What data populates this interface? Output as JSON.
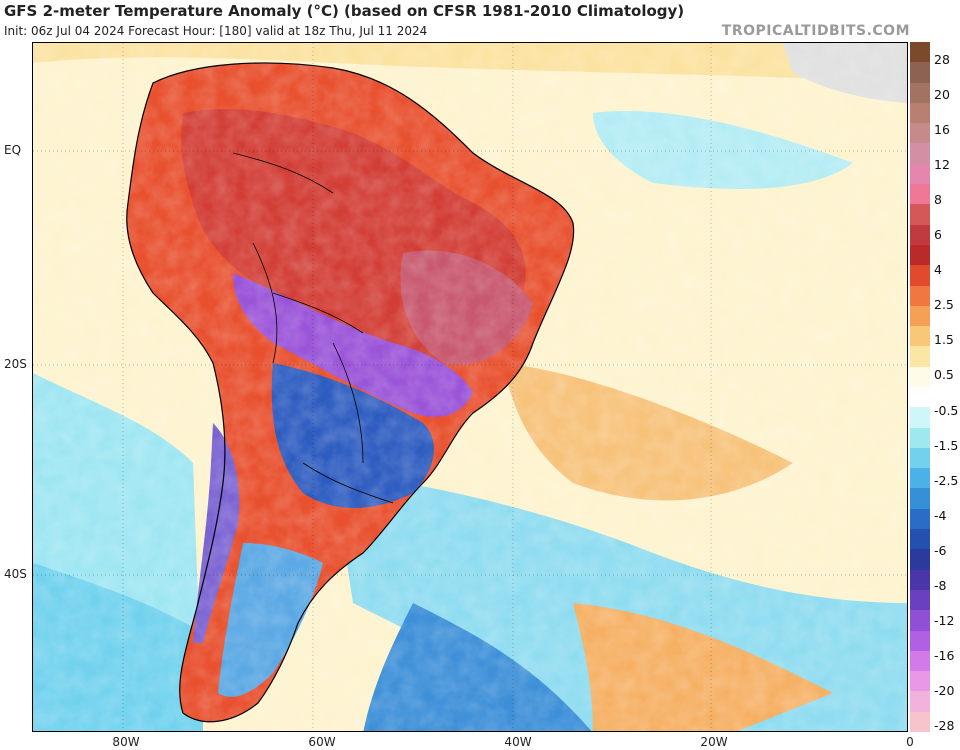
{
  "header": {
    "title": "GFS 2-meter Temperature Anomaly (°C) (based on CFSR 1981-2010 Climatology)",
    "subtitle": "Init: 06z Jul 04 2024   Forecast Hour: [180]   valid at 18z Thu, Jul 11 2024",
    "brand": "TROPICALTIDBITS.COM"
  },
  "axes": {
    "lat_labels": [
      "EQ",
      "20S",
      "40S"
    ],
    "lon_labels": [
      "80W",
      "60W",
      "40W",
      "20W",
      "0"
    ]
  },
  "colorbar": {
    "labels": [
      "28",
      "20",
      "16",
      "12",
      "8",
      "6",
      "4",
      "2.5",
      "1.5",
      "0.5",
      "-0.5",
      "-1.5",
      "-2.5",
      "-4",
      "-6",
      "-8",
      "-12",
      "-16",
      "-20",
      "-28"
    ],
    "colors": [
      "#7a4a2a",
      "#8e6252",
      "#a27262",
      "#b88070",
      "#c68a8a",
      "#d290a4",
      "#e486ae",
      "#ee7896",
      "#d45858",
      "#c03a40",
      "#ba2a2a",
      "#e24a2e",
      "#f07840",
      "#f5a055",
      "#f8c878",
      "#fbe6a4",
      "#fefce8",
      "#ffffff",
      "#cff6f8",
      "#a0e8f0",
      "#72d2ee",
      "#4ab2e6",
      "#3690d8",
      "#2a6cc6",
      "#2450b0",
      "#2c3a9e",
      "#4a36a8",
      "#6a40c0",
      "#9050d6",
      "#b060e2",
      "#d27ae8",
      "#e898e6",
      "#f2b2de",
      "#f8c4cc"
    ]
  }
}
